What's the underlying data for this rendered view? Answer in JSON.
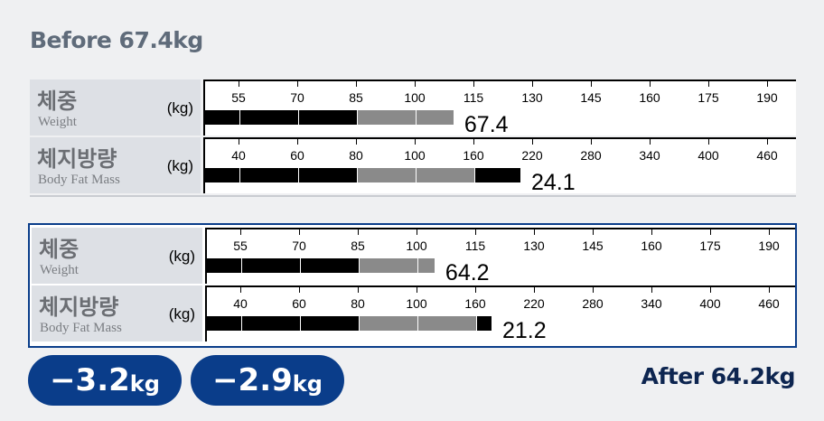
{
  "before": {
    "title": "Before 67.4kg",
    "rows": [
      {
        "ko": "체중",
        "en": "Weight",
        "unit": "(kg)",
        "ticks": [
          "55",
          "70",
          "85",
          "100",
          "115",
          "130",
          "145",
          "160",
          "175",
          "190"
        ],
        "normal_ticks": [
          2,
          4
        ],
        "bar_end": 109.9,
        "value": "67.4"
      },
      {
        "ko": "체지방량",
        "en": "Body Fat Mass",
        "unit": "(kg)",
        "ticks": [
          "40",
          "60",
          "80",
          "100",
          "160",
          "220",
          "280",
          "340",
          "400",
          "460"
        ],
        "normal_ticks": [
          2,
          4
        ],
        "bar_end": 208,
        "value": "24.1"
      }
    ]
  },
  "after": {
    "title": "After 64.2kg",
    "rows": [
      {
        "ko": "체중",
        "en": "Weight",
        "unit": "(kg)",
        "ticks": [
          "55",
          "70",
          "85",
          "100",
          "115",
          "130",
          "145",
          "160",
          "175",
          "190"
        ],
        "normal_ticks": [
          2,
          4
        ],
        "bar_end": 104.6,
        "value": "64.2",
        "change": "−3.2",
        "change_unit": "kg"
      },
      {
        "ko": "체지방량",
        "en": "Body Fat Mass",
        "unit": "(kg)",
        "ticks": [
          "40",
          "60",
          "80",
          "100",
          "160",
          "220",
          "280",
          "340",
          "400",
          "460"
        ],
        "normal_ticks": [
          2,
          4
        ],
        "bar_end": 176.6,
        "value": "21.2",
        "change": "−2.9",
        "change_unit": "kg"
      }
    ]
  },
  "colors": {
    "accent": "#0a3d8a",
    "bar_out": "#000000",
    "bar_normal": "#8a8a8a"
  }
}
